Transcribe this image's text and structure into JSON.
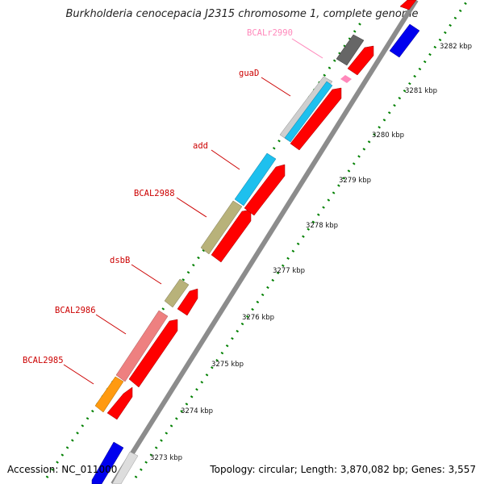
{
  "title": "Burkholderia cenocepacia J2315 chromosome 1, complete genome",
  "footer": {
    "accession": "Accession: NC_011000",
    "summary": "Topology: circular; Length: 3,870,082 bp; Genes: 3,557"
  },
  "colors": {
    "backbone": "#8c8c8c",
    "tick": "#008000",
    "gene_label": "#cc0000",
    "rna_label": "#ff88bb",
    "cds_forward": "#ff0000",
    "reverse_blue": "#0000ee",
    "cyan": "#1ec0ee",
    "olive": "#b8b27a",
    "salmon": "#ee8080",
    "orange": "#ff9a10",
    "dark_gray": "#666666",
    "light_gray": "#cfcfcf",
    "pink": "#ff88bb"
  },
  "scale_labels": [
    "3273 kbp",
    "3274 kbp",
    "3275 kbp",
    "3276 kbp",
    "3277 kbp",
    "3278 kbp",
    "3279 kbp",
    "3280 kbp",
    "3281 kbp",
    "3282 kbp"
  ],
  "gene_labels": [
    "BCALr2990",
    "guaD",
    "add",
    "BCAL2988",
    "dsbB",
    "BCAL2986",
    "BCAL2985"
  ]
}
